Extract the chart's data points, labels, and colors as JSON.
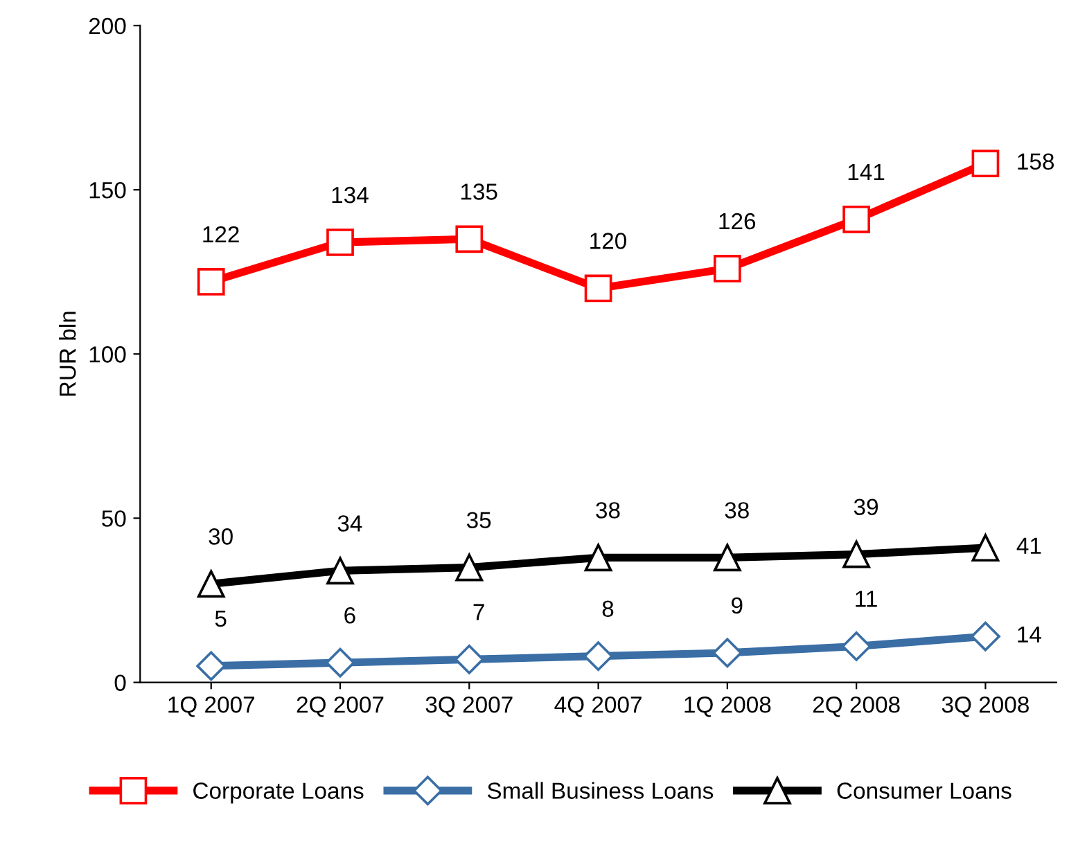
{
  "chart_data": {
    "type": "line",
    "ylabel": "RUR bln",
    "categories": [
      "1Q 2007",
      "2Q 2007",
      "3Q 2007",
      "4Q 2007",
      "1Q 2008",
      "2Q 2008",
      "3Q 2008"
    ],
    "series": [
      {
        "name": "Corporate Loans",
        "color": "#ff0000",
        "marker": "square",
        "values": [
          122,
          134,
          135,
          120,
          126,
          141,
          158
        ]
      },
      {
        "name": "Small Business Loans",
        "color": "#3a6ea5",
        "marker": "diamond",
        "values": [
          5,
          6,
          7,
          8,
          9,
          11,
          14
        ]
      },
      {
        "name": "Consumer Loans",
        "color": "#000000",
        "marker": "triangle",
        "values": [
          30,
          34,
          35,
          38,
          38,
          39,
          41
        ]
      }
    ],
    "ylim": [
      0,
      200
    ],
    "yticks": [
      0,
      50,
      100,
      150,
      200
    ],
    "grid": false,
    "legend": "bottom",
    "data_labels": true
  }
}
